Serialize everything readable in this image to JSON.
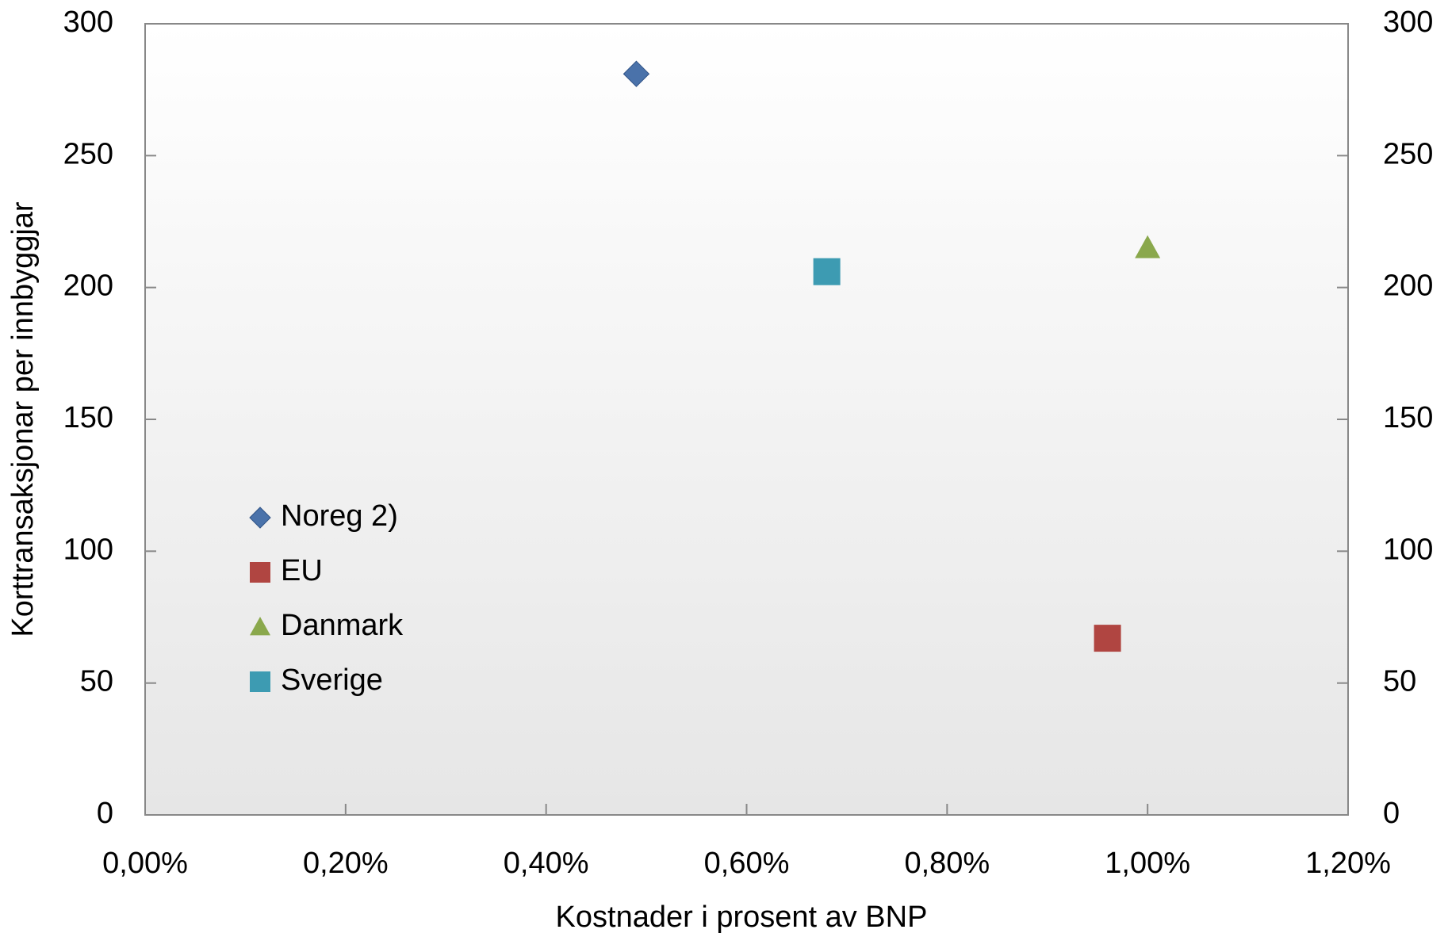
{
  "chart_data": {
    "type": "scatter",
    "xlabel": "Kostnader i prosent av BNP",
    "ylabel": "Korttransaksjonar per innbyggjar",
    "xlim": [
      0,
      1.2
    ],
    "xticks": [
      {
        "value": 0,
        "label": "0,00%"
      },
      {
        "value": 0.2,
        "label": "0,20%"
      },
      {
        "value": 0.4,
        "label": "0,40%"
      },
      {
        "value": 0.6,
        "label": "0,60%"
      },
      {
        "value": 0.8,
        "label": "0,80%"
      },
      {
        "value": 1.0,
        "label": "1,00%"
      },
      {
        "value": 1.2,
        "label": "1,20%"
      }
    ],
    "ylim": [
      0,
      300
    ],
    "yticks": [
      0,
      50,
      100,
      150,
      200,
      250,
      300
    ],
    "y2lim": [
      0,
      300
    ],
    "y2ticks": [
      0,
      50,
      100,
      150,
      200,
      250,
      300
    ],
    "legend": "left",
    "series": [
      {
        "name": "Noreg 2)",
        "color": "#4a72aa",
        "marker": "diamond",
        "x": [
          0.49
        ],
        "values": [
          281
        ]
      },
      {
        "name": "EU",
        "color": "#b04541",
        "marker": "square",
        "x": [
          0.96
        ],
        "values": [
          67
        ]
      },
      {
        "name": "Danmark",
        "color": "#8aa84c",
        "marker": "triangle",
        "x": [
          1.0
        ],
        "values": [
          215
        ]
      },
      {
        "name": "Sverige",
        "color": "#3d9bb2",
        "marker": "square",
        "x": [
          0.68
        ],
        "values": [
          206
        ]
      }
    ]
  }
}
